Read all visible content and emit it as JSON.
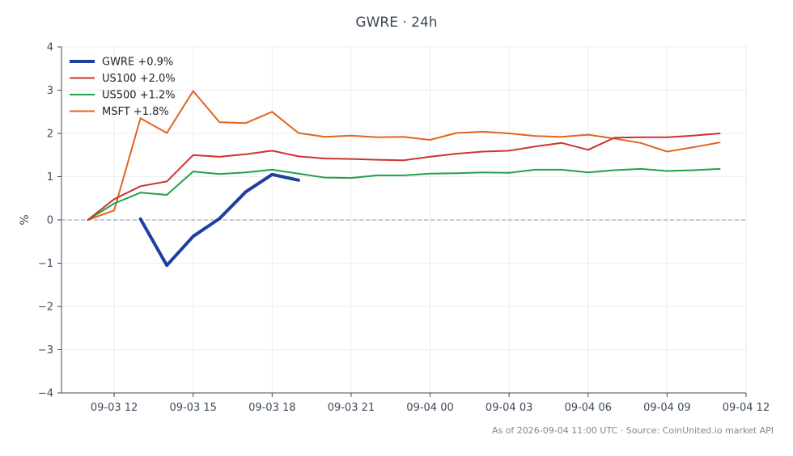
{
  "chart_data": {
    "type": "line",
    "title": "GWRE · 24h",
    "ylabel": "%",
    "xlabel": "",
    "ylim": [
      -4,
      4
    ],
    "yticks": [
      4,
      3,
      2,
      1,
      0,
      -1,
      -2,
      -3,
      -4
    ],
    "ytick_labels": [
      "4",
      "3",
      "2",
      "1",
      "0",
      "−1",
      "−2",
      "−3",
      "−4"
    ],
    "xlim": [
      "2026-09-03 10:00",
      "2026-09-04 12:00"
    ],
    "xticks": [
      "2026-09-03 12:00",
      "2026-09-03 15:00",
      "2026-09-03 18:00",
      "2026-09-03 21:00",
      "2026-09-04 00:00",
      "2026-09-04 03:00",
      "2026-09-04 06:00",
      "2026-09-04 09:00",
      "2026-09-04 12:00"
    ],
    "xtick_labels": [
      "09-03 12",
      "09-03 15",
      "09-03 18",
      "09-03 21",
      "09-04 00",
      "09-04 03",
      "09-04 06",
      "09-04 09",
      "09-04 12"
    ],
    "grid": true,
    "zero_line": true,
    "legend_position": "top-left",
    "series": [
      {
        "name": "GWRE +0.9%",
        "color": "#1f3fa0",
        "width": 4,
        "x": [
          "2026-09-03 13:00",
          "2026-09-03 14:00",
          "2026-09-03 15:00",
          "2026-09-03 16:00",
          "2026-09-03 17:00",
          "2026-09-03 18:00",
          "2026-09-03 19:00"
        ],
        "y": [
          0.02,
          -1.05,
          -0.38,
          0.03,
          0.65,
          1.05,
          0.92
        ]
      },
      {
        "name": "US100 +2.0%",
        "color": "#d0332b",
        "width": 2,
        "x": [
          "2026-09-03 11:00",
          "2026-09-03 12:00",
          "2026-09-03 13:00",
          "2026-09-03 14:00",
          "2026-09-03 15:00",
          "2026-09-03 16:00",
          "2026-09-03 17:00",
          "2026-09-03 18:00",
          "2026-09-03 19:00",
          "2026-09-03 20:00",
          "2026-09-03 21:00",
          "2026-09-03 22:00",
          "2026-09-03 23:00",
          "2026-09-04 00:00",
          "2026-09-04 01:00",
          "2026-09-04 02:00",
          "2026-09-04 03:00",
          "2026-09-04 04:00",
          "2026-09-04 05:00",
          "2026-09-04 06:00",
          "2026-09-04 07:00",
          "2026-09-04 08:00",
          "2026-09-04 09:00",
          "2026-09-04 10:00",
          "2026-09-04 11:00"
        ],
        "y": [
          0,
          0.48,
          0.78,
          0.89,
          1.5,
          1.46,
          1.52,
          1.6,
          1.47,
          1.42,
          1.41,
          1.39,
          1.38,
          1.46,
          1.53,
          1.58,
          1.6,
          1.7,
          1.78,
          1.62,
          1.9,
          1.91,
          1.91,
          1.95,
          2.0
        ]
      },
      {
        "name": "US500 +1.2%",
        "color": "#22a04a",
        "width": 2,
        "x": [
          "2026-09-03 11:00",
          "2026-09-03 12:00",
          "2026-09-03 13:00",
          "2026-09-03 14:00",
          "2026-09-03 15:00",
          "2026-09-03 16:00",
          "2026-09-03 17:00",
          "2026-09-03 18:00",
          "2026-09-03 19:00",
          "2026-09-03 20:00",
          "2026-09-03 21:00",
          "2026-09-03 22:00",
          "2026-09-03 23:00",
          "2026-09-04 00:00",
          "2026-09-04 01:00",
          "2026-09-04 02:00",
          "2026-09-04 03:00",
          "2026-09-04 04:00",
          "2026-09-04 05:00",
          "2026-09-04 06:00",
          "2026-09-04 07:00",
          "2026-09-04 08:00",
          "2026-09-04 09:00",
          "2026-09-04 10:00",
          "2026-09-04 11:00"
        ],
        "y": [
          0,
          0.38,
          0.63,
          0.58,
          1.12,
          1.06,
          1.1,
          1.16,
          1.07,
          0.98,
          0.97,
          1.03,
          1.03,
          1.07,
          1.08,
          1.1,
          1.09,
          1.16,
          1.16,
          1.1,
          1.15,
          1.18,
          1.13,
          1.15,
          1.18
        ]
      },
      {
        "name": "MSFT +1.8%",
        "color": "#e0651f",
        "width": 2,
        "x": [
          "2026-09-03 11:00",
          "2026-09-03 12:00",
          "2026-09-03 13:00",
          "2026-09-03 14:00",
          "2026-09-03 15:00",
          "2026-09-03 16:00",
          "2026-09-03 17:00",
          "2026-09-03 18:00",
          "2026-09-03 19:00",
          "2026-09-03 20:00",
          "2026-09-03 21:00",
          "2026-09-03 22:00",
          "2026-09-03 23:00",
          "2026-09-04 00:00",
          "2026-09-04 01:00",
          "2026-09-04 02:00",
          "2026-09-04 03:00",
          "2026-09-04 04:00",
          "2026-09-04 05:00",
          "2026-09-04 06:00",
          "2026-09-04 07:00",
          "2026-09-04 08:00",
          "2026-09-04 09:00",
          "2026-09-04 10:00",
          "2026-09-04 11:00"
        ],
        "y": [
          0,
          0.22,
          2.35,
          2.01,
          2.98,
          2.26,
          2.24,
          2.5,
          2.01,
          1.92,
          1.95,
          1.91,
          1.92,
          1.85,
          2.01,
          2.04,
          2.0,
          1.94,
          1.92,
          1.97,
          1.88,
          1.78,
          1.58,
          1.68,
          1.79
        ]
      }
    ]
  },
  "footer": "As of 2026-09-04 11:00 UTC · Source: CoinUnited.io market API"
}
